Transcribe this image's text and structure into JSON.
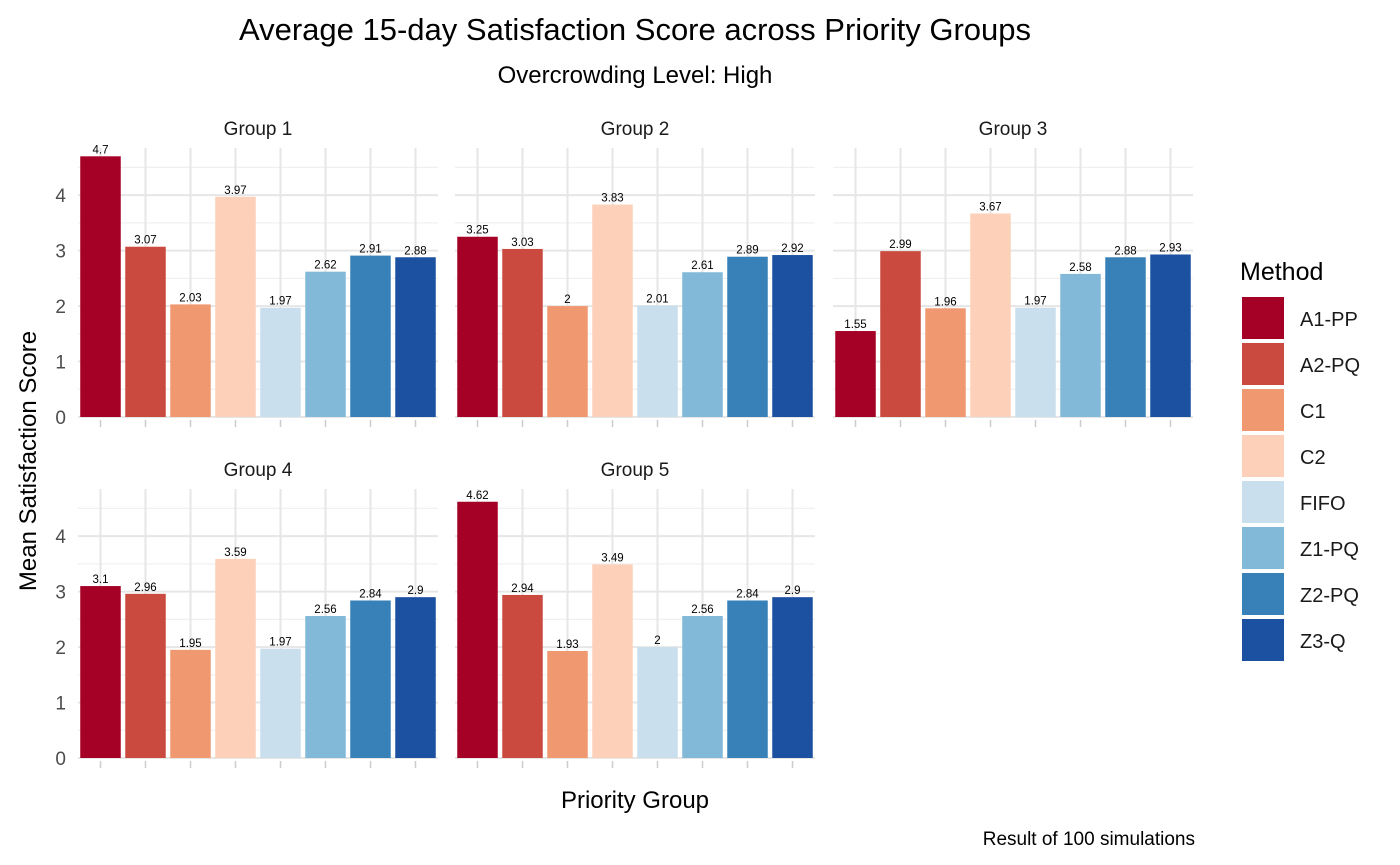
{
  "chart_data": {
    "type": "bar",
    "title": "Average 15-day Satisfaction Score across Priority Groups",
    "subtitle": "Overcrowding Level: High",
    "xlabel": "Priority Group",
    "ylabel": "Mean Satisfaction Score",
    "caption": "Result of 100 simulations",
    "ylim": [
      0,
      4.85
    ],
    "yticks": [
      0,
      1,
      2,
      3,
      4
    ],
    "grid": true,
    "legend": {
      "title": "Method",
      "position": "right"
    },
    "methods": [
      {
        "name": "A1-PP",
        "color": "#A50026"
      },
      {
        "name": "A2-PQ",
        "color": "#CB4A40"
      },
      {
        "name": "C1",
        "color": "#F09870"
      },
      {
        "name": "C2",
        "color": "#FDD1B9"
      },
      {
        "name": "FIFO",
        "color": "#C9DFED"
      },
      {
        "name": "Z1-PQ",
        "color": "#82B9D8"
      },
      {
        "name": "Z2-PQ",
        "color": "#3781B8"
      },
      {
        "name": "Z3-Q",
        "color": "#1B51A0"
      }
    ],
    "panels": [
      {
        "title": "Group 1",
        "values": [
          4.7,
          3.07,
          2.03,
          3.97,
          1.97,
          2.62,
          2.91,
          2.88
        ],
        "labels": [
          "4.7",
          "3.07",
          "2.03",
          "3.97",
          "1.97",
          "2.62",
          "2.91",
          "2.88"
        ]
      },
      {
        "title": "Group 2",
        "values": [
          3.25,
          3.03,
          2,
          3.83,
          2.01,
          2.61,
          2.89,
          2.92
        ],
        "labels": [
          "3.25",
          "3.03",
          "2",
          "3.83",
          "2.01",
          "2.61",
          "2.89",
          "2.92"
        ]
      },
      {
        "title": "Group 3",
        "values": [
          1.55,
          2.99,
          1.96,
          3.67,
          1.97,
          2.58,
          2.88,
          2.93
        ],
        "labels": [
          "1.55",
          "2.99",
          "1.96",
          "3.67",
          "1.97",
          "2.58",
          "2.88",
          "2.93"
        ]
      },
      {
        "title": "Group 4",
        "values": [
          3.1,
          2.96,
          1.95,
          3.59,
          1.97,
          2.56,
          2.84,
          2.9
        ],
        "labels": [
          "3.1",
          "2.96",
          "1.95",
          "3.59",
          "1.97",
          "2.56",
          "2.84",
          "2.9"
        ]
      },
      {
        "title": "Group 5",
        "values": [
          4.62,
          2.94,
          1.93,
          3.49,
          2,
          2.56,
          2.84,
          2.9
        ],
        "labels": [
          "4.62",
          "2.94",
          "1.93",
          "3.49",
          "2",
          "2.56",
          "2.84",
          "2.9"
        ]
      }
    ]
  }
}
